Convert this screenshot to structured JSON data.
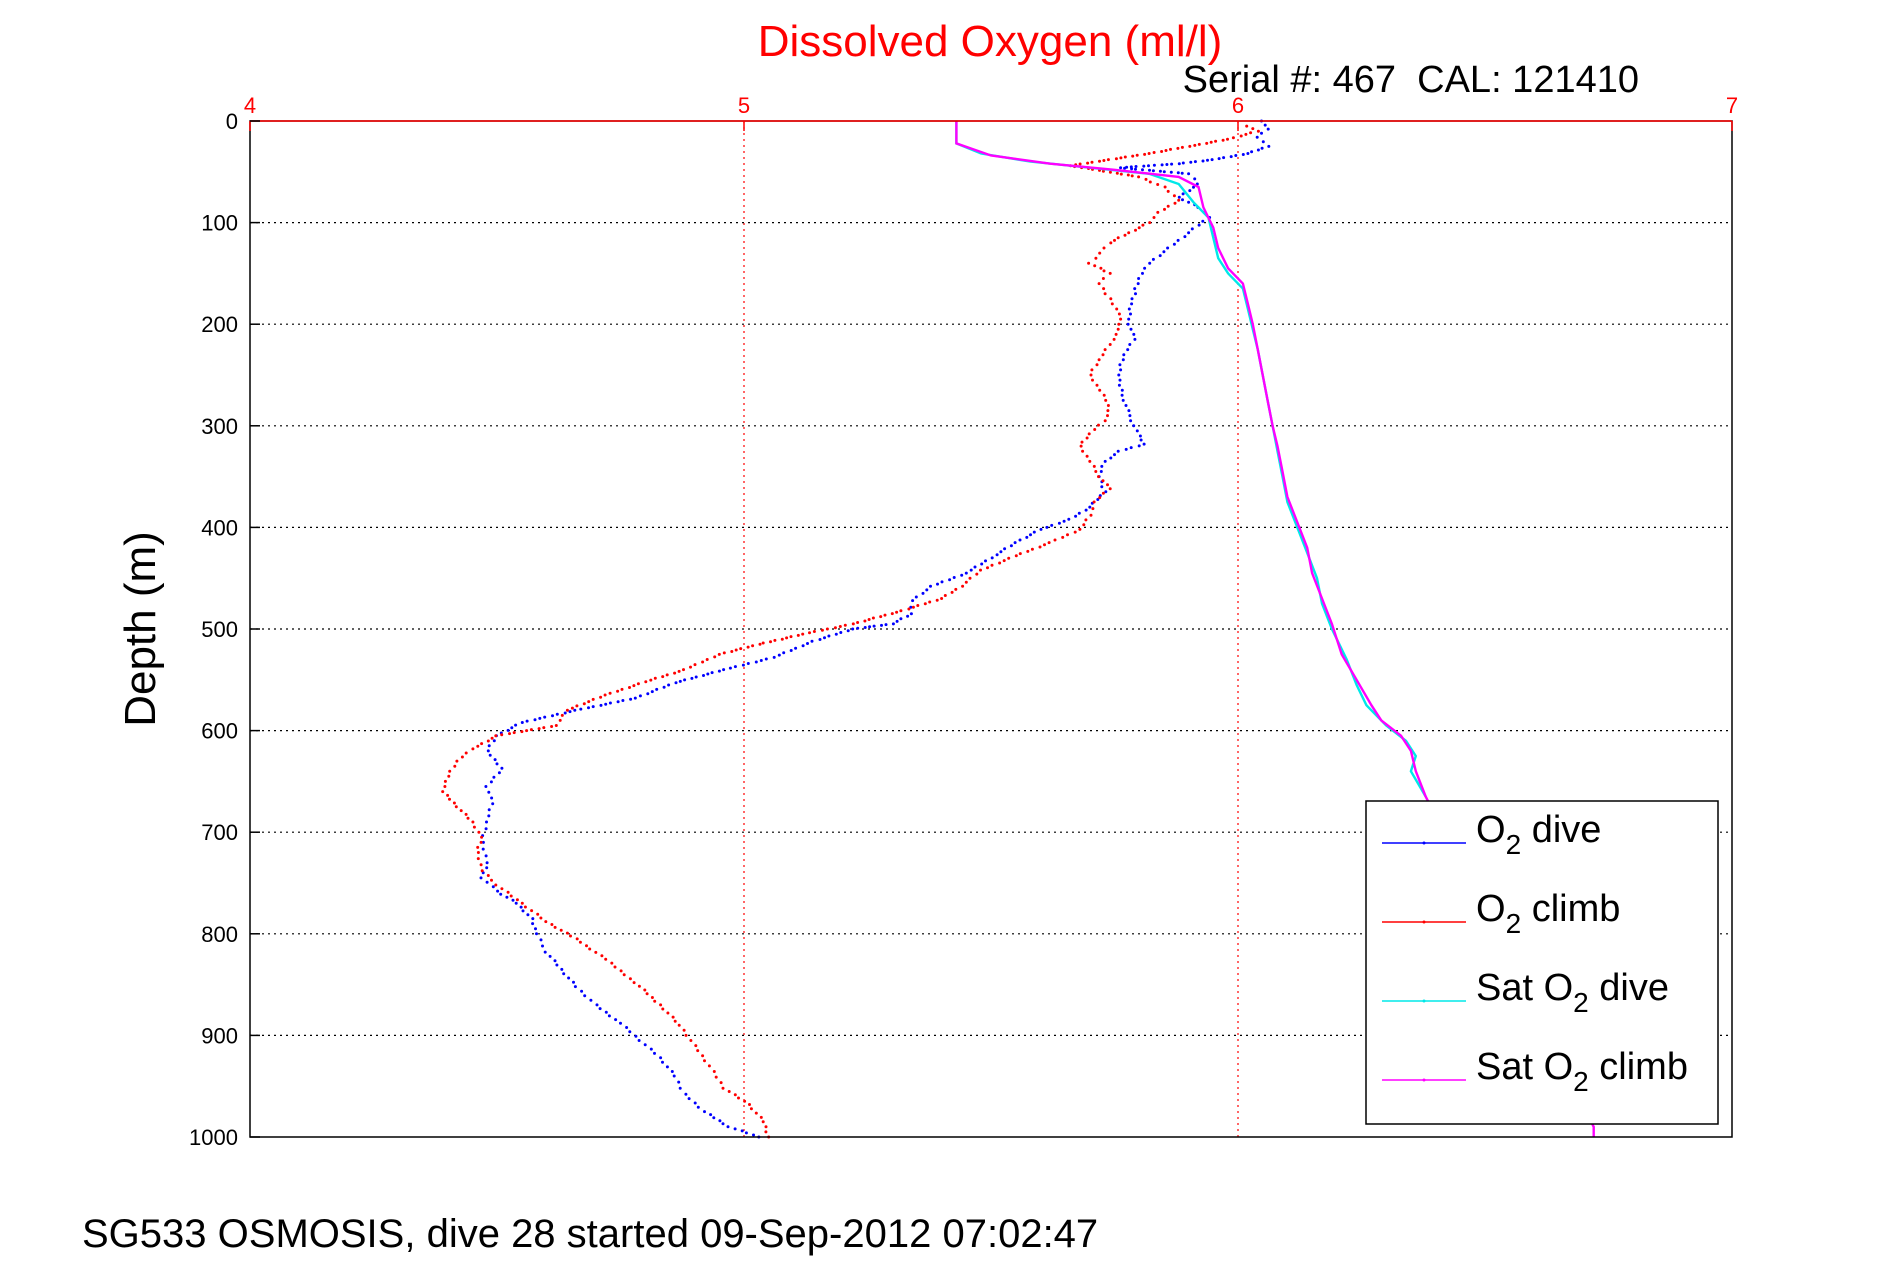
{
  "chart_data": {
    "type": "line",
    "title": "Dissolved Oxygen (ml/l)",
    "subtitle": "Serial #: 467  CAL: 121410",
    "xlabel": "",
    "ylabel": "Depth (m)",
    "xlim": [
      4,
      7
    ],
    "ylim": [
      0,
      1000
    ],
    "y_reversed": true,
    "x_axis_position": "top",
    "x_ticks": [
      4,
      5,
      6,
      7
    ],
    "y_ticks": [
      0,
      100,
      200,
      300,
      400,
      500,
      600,
      700,
      800,
      900,
      1000
    ],
    "grid": true,
    "legend_position": "bottom-right",
    "colors": {
      "title": "#ff0000",
      "x_axis": "#ff0000",
      "x_grid": "#ff0000",
      "y_grid": "#000000",
      "frame": "#000000"
    },
    "series": [
      {
        "name": "O2 dive",
        "label_parts": [
          "O",
          "2",
          " dive"
        ],
        "color": "#0000ff",
        "style": "dots",
        "points": [
          [
            6.05,
            0
          ],
          [
            6.06,
            8
          ],
          [
            6.04,
            16
          ],
          [
            6.06,
            25
          ],
          [
            6.02,
            32
          ],
          [
            5.95,
            38
          ],
          [
            5.88,
            42
          ],
          [
            5.82,
            44
          ],
          [
            5.76,
            46
          ],
          [
            5.9,
            52
          ],
          [
            5.92,
            62
          ],
          [
            5.88,
            75
          ],
          [
            5.92,
            85
          ],
          [
            5.94,
            95
          ],
          [
            5.9,
            110
          ],
          [
            5.86,
            125
          ],
          [
            5.82,
            140
          ],
          [
            5.8,
            155
          ],
          [
            5.79,
            170
          ],
          [
            5.78,
            185
          ],
          [
            5.78,
            200
          ],
          [
            5.79,
            215
          ],
          [
            5.77,
            230
          ],
          [
            5.76,
            245
          ],
          [
            5.76,
            260
          ],
          [
            5.77,
            275
          ],
          [
            5.78,
            290
          ],
          [
            5.79,
            300
          ],
          [
            5.8,
            310
          ],
          [
            5.81,
            318
          ],
          [
            5.76,
            325
          ],
          [
            5.73,
            335
          ],
          [
            5.72,
            350
          ],
          [
            5.73,
            365
          ],
          [
            5.7,
            380
          ],
          [
            5.66,
            392
          ],
          [
            5.6,
            402
          ],
          [
            5.55,
            415
          ],
          [
            5.5,
            430
          ],
          [
            5.45,
            445
          ],
          [
            5.38,
            458
          ],
          [
            5.34,
            472
          ],
          [
            5.34,
            485
          ],
          [
            5.3,
            495
          ],
          [
            5.22,
            500
          ],
          [
            5.14,
            512
          ],
          [
            5.06,
            528
          ],
          [
            4.96,
            540
          ],
          [
            4.86,
            553
          ],
          [
            4.78,
            568
          ],
          [
            4.66,
            580
          ],
          [
            4.55,
            592
          ],
          [
            4.5,
            605
          ],
          [
            4.48,
            620
          ],
          [
            4.51,
            637
          ],
          [
            4.48,
            655
          ],
          [
            4.49,
            672
          ],
          [
            4.48,
            690
          ],
          [
            4.47,
            710
          ],
          [
            4.48,
            730
          ],
          [
            4.47,
            745
          ],
          [
            4.5,
            758
          ],
          [
            4.54,
            770
          ],
          [
            4.57,
            785
          ],
          [
            4.58,
            800
          ],
          [
            4.6,
            818
          ],
          [
            4.63,
            835
          ],
          [
            4.66,
            852
          ],
          [
            4.7,
            870
          ],
          [
            4.75,
            888
          ],
          [
            4.79,
            905
          ],
          [
            4.83,
            922
          ],
          [
            4.86,
            940
          ],
          [
            4.88,
            958
          ],
          [
            4.92,
            975
          ],
          [
            4.97,
            990
          ],
          [
            5.03,
            1000
          ]
        ]
      },
      {
        "name": "O2 climb",
        "label_parts": [
          "O",
          "2",
          " climb"
        ],
        "color": "#ff0000",
        "style": "dots",
        "points": [
          [
            6.02,
            5
          ],
          [
            6.04,
            10
          ],
          [
            5.98,
            18
          ],
          [
            5.9,
            25
          ],
          [
            5.82,
            32
          ],
          [
            5.74,
            38
          ],
          [
            5.66,
            44
          ],
          [
            5.8,
            55
          ],
          [
            5.85,
            65
          ],
          [
            5.88,
            78
          ],
          [
            5.84,
            90
          ],
          [
            5.82,
            100
          ],
          [
            5.78,
            110
          ],
          [
            5.74,
            120
          ],
          [
            5.72,
            130
          ],
          [
            5.7,
            140
          ],
          [
            5.74,
            150
          ],
          [
            5.72,
            160
          ],
          [
            5.74,
            175
          ],
          [
            5.76,
            190
          ],
          [
            5.76,
            205
          ],
          [
            5.74,
            220
          ],
          [
            5.72,
            235
          ],
          [
            5.7,
            250
          ],
          [
            5.72,
            265
          ],
          [
            5.74,
            280
          ],
          [
            5.73,
            295
          ],
          [
            5.7,
            308
          ],
          [
            5.68,
            320
          ],
          [
            5.7,
            335
          ],
          [
            5.72,
            350
          ],
          [
            5.74,
            362
          ],
          [
            5.71,
            375
          ],
          [
            5.7,
            388
          ],
          [
            5.68,
            402
          ],
          [
            5.62,
            415
          ],
          [
            5.55,
            428
          ],
          [
            5.48,
            442
          ],
          [
            5.44,
            458
          ],
          [
            5.4,
            470
          ],
          [
            5.32,
            482
          ],
          [
            5.22,
            495
          ],
          [
            5.12,
            505
          ],
          [
            5.03,
            515
          ],
          [
            4.95,
            525
          ],
          [
            4.88,
            540
          ],
          [
            4.8,
            552
          ],
          [
            4.72,
            565
          ],
          [
            4.64,
            580
          ],
          [
            4.62,
            595
          ],
          [
            4.5,
            605
          ],
          [
            4.45,
            618
          ],
          [
            4.42,
            630
          ],
          [
            4.4,
            645
          ],
          [
            4.39,
            660
          ],
          [
            4.42,
            675
          ],
          [
            4.45,
            690
          ],
          [
            4.47,
            705
          ],
          [
            4.46,
            720
          ],
          [
            4.47,
            738
          ],
          [
            4.5,
            752
          ],
          [
            4.55,
            770
          ],
          [
            4.6,
            788
          ],
          [
            4.66,
            805
          ],
          [
            4.72,
            825
          ],
          [
            4.78,
            848
          ],
          [
            4.83,
            870
          ],
          [
            4.87,
            890
          ],
          [
            4.9,
            910
          ],
          [
            4.93,
            930
          ],
          [
            4.96,
            952
          ],
          [
            5.01,
            968
          ],
          [
            5.04,
            985
          ],
          [
            5.05,
            1000
          ]
        ]
      },
      {
        "name": "Sat O2 dive",
        "label_parts": [
          "Sat O",
          "2",
          " dive"
        ],
        "color": "#00e8e8",
        "style": "line",
        "points": [
          [
            5.43,
            0
          ],
          [
            5.43,
            22
          ],
          [
            5.48,
            32
          ],
          [
            5.58,
            40
          ],
          [
            5.7,
            46
          ],
          [
            5.82,
            52
          ],
          [
            5.88,
            62
          ],
          [
            5.91,
            80
          ],
          [
            5.94,
            95
          ],
          [
            5.95,
            115
          ],
          [
            5.96,
            135
          ],
          [
            5.98,
            150
          ],
          [
            6.01,
            165
          ],
          [
            6.02,
            185
          ],
          [
            6.03,
            205
          ],
          [
            6.04,
            225
          ],
          [
            6.05,
            250
          ],
          [
            6.06,
            275
          ],
          [
            6.07,
            300
          ],
          [
            6.08,
            325
          ],
          [
            6.09,
            350
          ],
          [
            6.1,
            375
          ],
          [
            6.12,
            400
          ],
          [
            6.14,
            425
          ],
          [
            6.16,
            450
          ],
          [
            6.17,
            475
          ],
          [
            6.19,
            500
          ],
          [
            6.22,
            530
          ],
          [
            6.24,
            555
          ],
          [
            6.26,
            575
          ],
          [
            6.3,
            595
          ],
          [
            6.34,
            610
          ],
          [
            6.36,
            625
          ],
          [
            6.35,
            640
          ],
          [
            6.38,
            665
          ]
        ]
      },
      {
        "name": "Sat O2 climb",
        "label_parts": [
          "Sat O",
          "2",
          " climb"
        ],
        "color": "#ff00ff",
        "style": "line",
        "points": [
          [
            5.43,
            0
          ],
          [
            5.43,
            22
          ],
          [
            5.5,
            34
          ],
          [
            5.62,
            42
          ],
          [
            5.75,
            48
          ],
          [
            5.88,
            55
          ],
          [
            5.92,
            65
          ],
          [
            5.93,
            85
          ],
          [
            5.95,
            105
          ],
          [
            5.96,
            125
          ],
          [
            5.98,
            145
          ],
          [
            6.01,
            160
          ],
          [
            6.02,
            180
          ],
          [
            6.03,
            200
          ],
          [
            6.04,
            225
          ],
          [
            6.05,
            250
          ],
          [
            6.06,
            275
          ],
          [
            6.07,
            300
          ],
          [
            6.08,
            320
          ],
          [
            6.09,
            345
          ],
          [
            6.1,
            370
          ],
          [
            6.12,
            395
          ],
          [
            6.14,
            420
          ],
          [
            6.15,
            445
          ],
          [
            6.17,
            470
          ],
          [
            6.19,
            495
          ],
          [
            6.21,
            525
          ],
          [
            6.24,
            550
          ],
          [
            6.27,
            575
          ],
          [
            6.29,
            590
          ],
          [
            6.33,
            605
          ],
          [
            6.35,
            620
          ],
          [
            6.36,
            640
          ],
          [
            6.38,
            665
          ],
          [
            6.72,
            990
          ],
          [
            6.72,
            1000
          ]
        ]
      }
    ]
  },
  "footer": "SG533 OSMOSIS, dive 28 started 09-Sep-2012 07:02:47"
}
